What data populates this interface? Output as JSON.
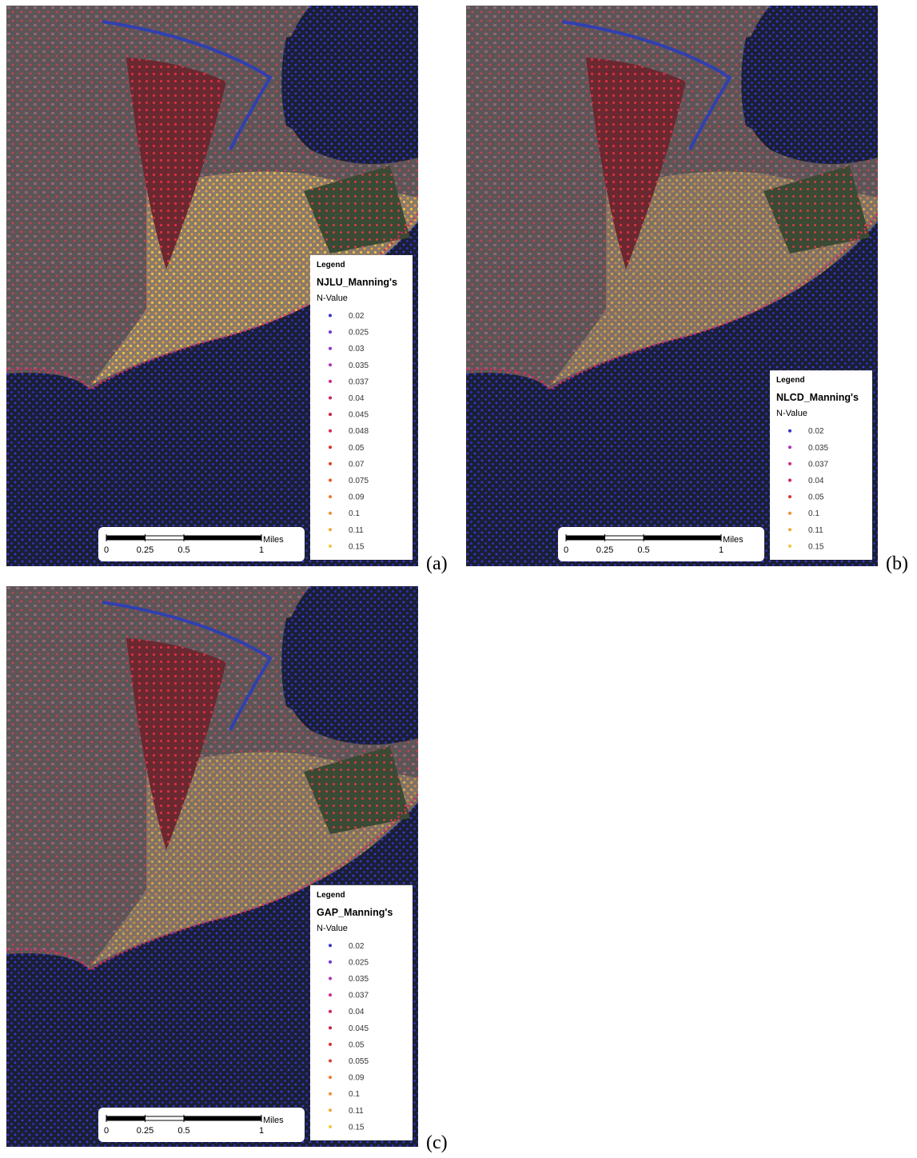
{
  "panels": [
    {
      "label": "(a)",
      "legend": {
        "heading": "Legend",
        "title": "NJLU_Manning's",
        "subtitle": "N-Value",
        "items": [
          {
            "label": "0.02",
            "color": "#3535c8"
          },
          {
            "label": "0.025",
            "color": "#7035d0"
          },
          {
            "label": "0.03",
            "color": "#9030c8"
          },
          {
            "label": "0.035",
            "color": "#b030b8"
          },
          {
            "label": "0.037",
            "color": "#d02888"
          },
          {
            "label": "0.04",
            "color": "#d02060"
          },
          {
            "label": "0.045",
            "color": "#c82040"
          },
          {
            "label": "0.048",
            "color": "#d82848"
          },
          {
            "label": "0.05",
            "color": "#d83030"
          },
          {
            "label": "0.07",
            "color": "#e04020"
          },
          {
            "label": "0.075",
            "color": "#e85820"
          },
          {
            "label": "0.09",
            "color": "#f07828"
          },
          {
            "label": "0.1",
            "color": "#f09030"
          },
          {
            "label": "0.11",
            "color": "#f0a838"
          },
          {
            "label": "0.15",
            "color": "#f0c840"
          }
        ]
      },
      "scale_bar": {
        "ticks": [
          "0",
          "0.25",
          "0.5",
          "1"
        ],
        "unit": "Miles"
      }
    },
    {
      "label": "(b)",
      "legend": {
        "heading": "Legend",
        "title": "NLCD_Manning's",
        "subtitle": "N-Value",
        "items": [
          {
            "label": "0.02",
            "color": "#3535c8"
          },
          {
            "label": "0.035",
            "color": "#b030b8"
          },
          {
            "label": "0.037",
            "color": "#d02888"
          },
          {
            "label": "0.04",
            "color": "#d02060"
          },
          {
            "label": "0.05",
            "color": "#d83030"
          },
          {
            "label": "0.1",
            "color": "#f09030"
          },
          {
            "label": "0.11",
            "color": "#f0a838"
          },
          {
            "label": "0.15",
            "color": "#f0c840"
          }
        ]
      },
      "scale_bar": {
        "ticks": [
          "0",
          "0.25",
          "0.5",
          "1"
        ],
        "unit": "Miles"
      }
    },
    {
      "label": "(c)",
      "legend": {
        "heading": "Legend",
        "title": "GAP_Manning's",
        "subtitle": "N-Value",
        "items": [
          {
            "label": "0.02",
            "color": "#3535c8"
          },
          {
            "label": "0.025",
            "color": "#7035d0"
          },
          {
            "label": "0.035",
            "color": "#b030b8"
          },
          {
            "label": "0.037",
            "color": "#d02888"
          },
          {
            "label": "0.04",
            "color": "#d02060"
          },
          {
            "label": "0.045",
            "color": "#c82040"
          },
          {
            "label": "0.05",
            "color": "#d83030"
          },
          {
            "label": "0.055",
            "color": "#d84030"
          },
          {
            "label": "0.09",
            "color": "#f07828"
          },
          {
            "label": "0.1",
            "color": "#f09030"
          },
          {
            "label": "0.11",
            "color": "#f0a838"
          },
          {
            "label": "0.15",
            "color": "#f0c840"
          }
        ]
      },
      "scale_bar": {
        "ticks": [
          "0",
          "0.25",
          "0.5",
          "1"
        ],
        "unit": "Miles"
      }
    }
  ]
}
